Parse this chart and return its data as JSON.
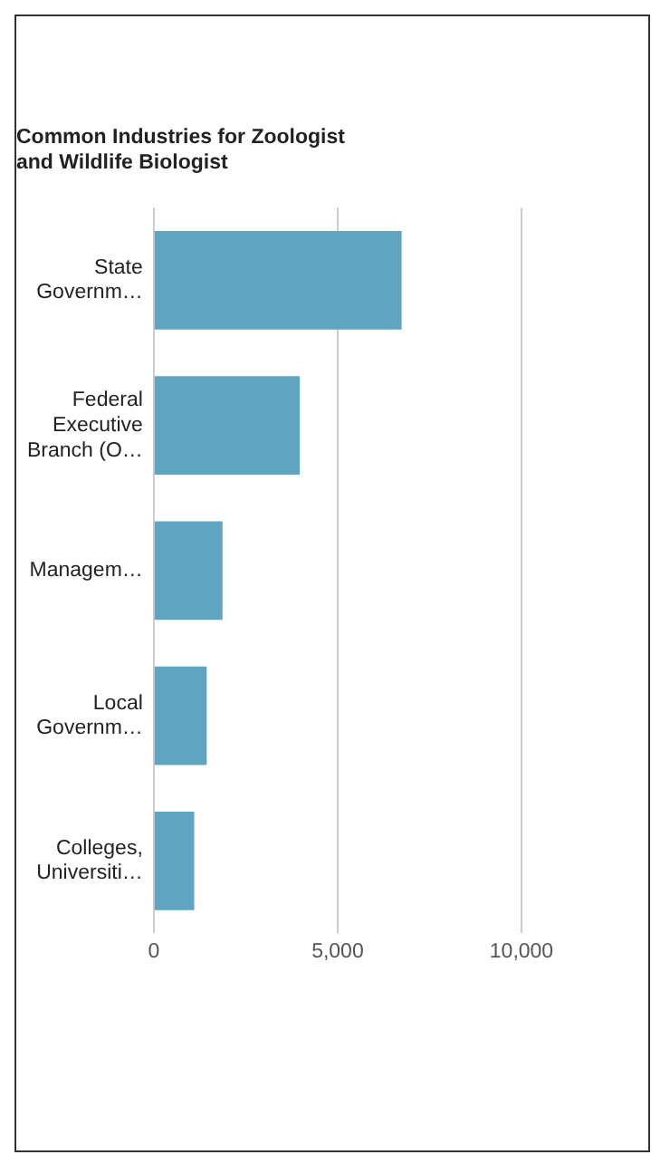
{
  "chart_data": {
    "type": "bar",
    "orientation": "horizontal",
    "title": "Common Industries for Zoologist and Wildlife Biologist",
    "categories": [
      "State Governm…",
      "Federal Executive Branch (O…",
      "Managem…",
      "Local Governm…",
      "Colleges, Universiti…"
    ],
    "values": [
      6740,
      3970,
      1870,
      1440,
      1100
    ],
    "color": "#5fa5c2",
    "xlim": [
      0,
      10000
    ],
    "xticks": [
      {
        "value": 0,
        "label": "0"
      },
      {
        "value": 5000,
        "label": "5,000"
      },
      {
        "value": 10000,
        "label": "10,000"
      }
    ],
    "grid": "x",
    "legend": false
  }
}
